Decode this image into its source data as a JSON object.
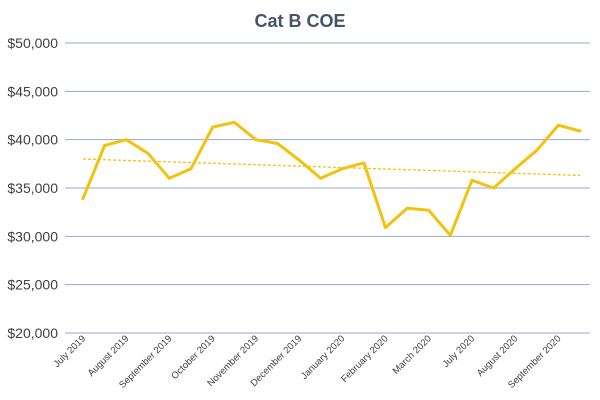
{
  "chart_data": {
    "type": "line",
    "title": "Cat B COE",
    "xlabel": "",
    "ylabel": "",
    "ylim": [
      20000,
      50000
    ],
    "y_ticks": [
      20000,
      25000,
      30000,
      35000,
      40000,
      45000,
      50000
    ],
    "y_tick_labels": [
      "$20,000",
      "$25,000",
      "$30,000",
      "$35,000",
      "$40,000",
      "$45,000",
      "$50,000"
    ],
    "x": [
      "July 2019",
      "",
      "August 2019",
      "",
      "September 2019",
      "",
      "October 2019",
      "",
      "November 2019",
      "",
      "December 2019",
      "",
      "January 2020",
      "",
      "February 2020",
      "",
      "March 2020",
      "",
      "July 2020",
      "",
      "August 2020",
      "",
      "September 2020",
      ""
    ],
    "x_tick_labels": [
      "July 2019",
      "August 2019",
      "September 2019",
      "October 2019",
      "November 2019",
      "December 2019",
      "January 2020",
      "February 2020",
      "March 2020",
      "July 2020",
      "August 2020",
      "September 2020"
    ],
    "grid": true,
    "legend": "none",
    "series": [
      {
        "color": "#f4c20d",
        "values": [
          33900,
          39400,
          40000,
          38600,
          36000,
          37000,
          41300,
          41800,
          40000,
          39600,
          37900,
          36000,
          37000,
          37600,
          30900,
          32900,
          32700,
          30100,
          35800,
          35000,
          37000,
          38900,
          41500,
          40900
        ]
      }
    ],
    "trendline": {
      "style": "dashed",
      "color": "#f4c20d",
      "start": 38000,
      "end": 36300
    }
  }
}
